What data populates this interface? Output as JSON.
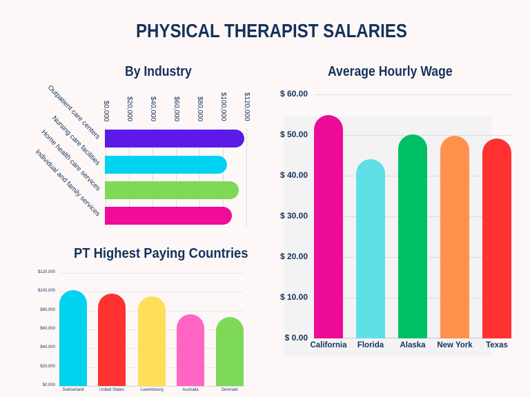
{
  "header": {
    "title": "PHYSICAL THERAPIST SALARIES"
  },
  "industry": {
    "title": "By Industry",
    "ticks": [
      "$0,000",
      "$20,000",
      "$40,000",
      "$60,000",
      "$80,000",
      "$100,000",
      "$120,000"
    ],
    "labels": [
      "Outpatient care centers",
      "Nursing care facilities",
      "Home health care services",
      "Individual and family services"
    ]
  },
  "hourly": {
    "title": "Average Hourly Wage",
    "ticks": [
      "$ 60.00",
      "$ 50.00",
      "$ 40.00",
      "$ 30.00",
      "$ 20.00",
      "$ 10.00",
      "$ 0.00"
    ],
    "labels": [
      "California",
      "Florida",
      "Alaska",
      "New York",
      "Texas"
    ]
  },
  "countries": {
    "title": "PT Highest Paying Countries",
    "ticks": [
      "$120,000",
      "$100,000",
      "$80,000",
      "$60,000",
      "$40,000",
      "$20,000",
      "$0,000"
    ],
    "labels": [
      "Switzerland",
      "United States",
      "Luxembourg",
      "Australia",
      "Denmark"
    ]
  },
  "colors": {
    "title": "#14325c",
    "background": "#fdf8f7",
    "industry": [
      "#5b1ae6",
      "#00d2f0",
      "#7ed957",
      "#ee0c98"
    ],
    "hourly": [
      "#ec0c98",
      "#5ee0e6",
      "#00c066",
      "#ff914d",
      "#ff3131"
    ],
    "countries": [
      "#00d2f0",
      "#ff3131",
      "#ffde59",
      "#ff66c4",
      "#7ed957"
    ]
  },
  "chart_data": [
    {
      "type": "bar",
      "orientation": "horizontal",
      "title": "By Industry",
      "categories": [
        "Outpatient care centers",
        "Nursing care facilities",
        "Home health care services",
        "Individual and family services"
      ],
      "values": [
        119000,
        104000,
        114000,
        108000
      ],
      "xlabel": "",
      "ylabel": "",
      "xlim": [
        0,
        120000
      ],
      "tick_labels": [
        "$0,000",
        "$20,000",
        "$40,000",
        "$60,000",
        "$80,000",
        "$100,000",
        "$120,000"
      ],
      "grid": true,
      "legend": "none"
    },
    {
      "type": "bar",
      "orientation": "vertical",
      "title": "Average Hourly Wage",
      "categories": [
        "California",
        "Florida",
        "Alaska",
        "New York",
        "Texas"
      ],
      "values": [
        54.8,
        44.0,
        50.2,
        49.7,
        49.1
      ],
      "xlabel": "",
      "ylabel": "",
      "ylim": [
        0,
        60
      ],
      "tick_labels": [
        "$ 0.00",
        "$ 10.00",
        "$ 20.00",
        "$ 30.00",
        "$ 40.00",
        "$ 50.00",
        "$ 60.00"
      ],
      "grid": true,
      "legend": "none"
    },
    {
      "type": "bar",
      "orientation": "vertical",
      "title": "PT Highest Paying Countries",
      "categories": [
        "Switzerland",
        "United States",
        "Luxembourg",
        "Australia",
        "Denmark"
      ],
      "values": [
        101700,
        97900,
        95000,
        76200,
        73300
      ],
      "xlabel": "",
      "ylabel": "",
      "ylim": [
        0,
        120000
      ],
      "tick_labels": [
        "$0,000",
        "$20,000",
        "$40,000",
        "$60,000",
        "$80,000",
        "$100,000",
        "$120,000"
      ],
      "grid": true,
      "legend": "none"
    }
  ]
}
